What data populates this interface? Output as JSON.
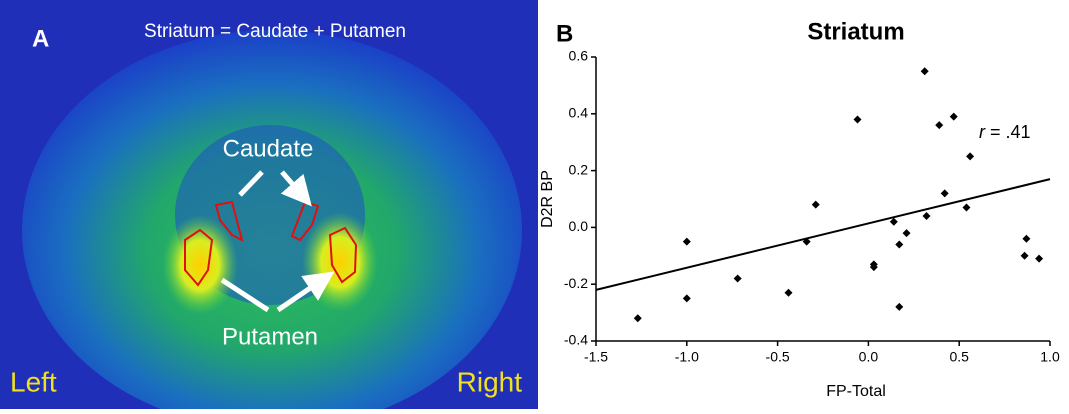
{
  "panel_a": {
    "letter": "A",
    "title": "Striatum = Caudate + Putamen",
    "caudate": "Caudate",
    "putamen": "Putamen",
    "left": "Left",
    "right": "Right"
  },
  "chart_data": {
    "type": "scatter",
    "letter": "B",
    "title": "Striatum",
    "x_label": "FP-Total",
    "y_label": "D2R BP",
    "annotation_symbol": "r",
    "annotation_value": "= .41",
    "x": [
      -1.27,
      -1.0,
      -1.0,
      -0.72,
      -0.44,
      -0.34,
      -0.29,
      -0.06,
      0.03,
      0.03,
      0.14,
      0.17,
      0.21,
      0.17,
      0.31,
      0.32,
      0.39,
      0.42,
      0.47,
      0.54,
      0.56,
      0.87,
      0.86,
      0.94
    ],
    "values": [
      -0.32,
      -0.05,
      -0.25,
      -0.18,
      -0.23,
      -0.05,
      0.08,
      0.38,
      -0.13,
      -0.14,
      0.02,
      -0.06,
      -0.02,
      -0.28,
      0.55,
      0.04,
      0.36,
      0.12,
      0.39,
      0.07,
      0.25,
      -0.04,
      -0.1,
      -0.11
    ],
    "color": "#000000",
    "fit": {
      "x": [
        -1.5,
        1.0
      ],
      "y": [
        -0.22,
        0.17
      ]
    },
    "xlim": [
      -1.5,
      1.0
    ],
    "xticks": [
      -1.5,
      {
        "value": -1.0,
        "label": "-1.0"
      },
      -0.5,
      {
        "value": 0,
        "label": "0.0"
      },
      0.5,
      {
        "value": 1.0,
        "label": "1.0"
      }
    ],
    "ylim": [
      -0.4,
      0.6
    ],
    "yticks": [
      -0.4,
      -0.2,
      {
        "value": 0,
        "label": "0.0"
      },
      0.2,
      0.4,
      0.6
    ]
  }
}
